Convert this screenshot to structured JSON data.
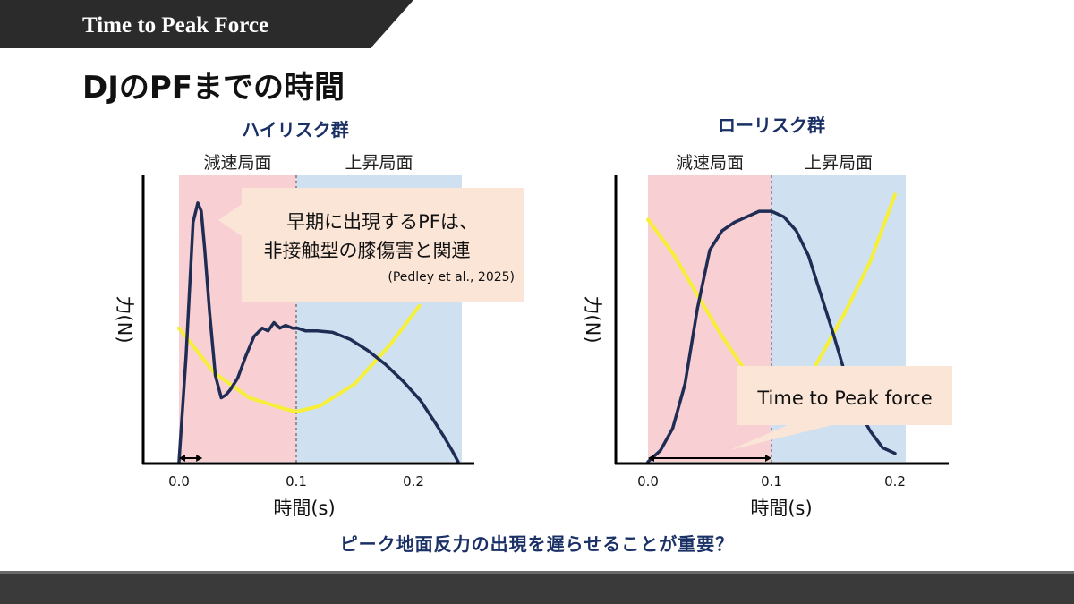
{
  "header": {
    "banner_title": "Time to Peak Force",
    "slide_title": "DJのPFまでの時間"
  },
  "colors": {
    "banner": "#2b2b2b",
    "deceleration_phase": "#f8cfd3",
    "ascending_phase": "#cfe0f0",
    "force_curve": "#1f2d55",
    "yellow_curve": "#f6ef3a",
    "group_title": "#1a3066",
    "callout": "#fbe5d6"
  },
  "conclusion": "ピーク地面反力の出現を遅らせることが重要？",
  "chart_data": [
    {
      "type": "line",
      "title": "ハイリスク群",
      "xlabel": "時間(s)",
      "ylabel": "力(N)",
      "x_ticks": [
        0.0,
        0.1,
        0.2
      ],
      "x_tick_labels": [
        "0.0",
        "0.1",
        "0.2"
      ],
      "xlim": [
        -0.03,
        0.255
      ],
      "ylim": [
        0,
        1
      ],
      "phases": [
        {
          "label": "減速局面",
          "start": 0.0,
          "end": 0.1
        },
        {
          "label": "上昇局面",
          "start": 0.1,
          "end": 0.24
        }
      ],
      "series": [
        {
          "name": "force",
          "x": [
            0.0,
            0.006,
            0.012,
            0.016,
            0.019,
            0.022,
            0.026,
            0.031,
            0.036,
            0.04,
            0.044,
            0.05,
            0.057,
            0.064,
            0.071,
            0.076,
            0.081,
            0.086,
            0.091,
            0.097,
            0.101,
            0.108,
            0.118,
            0.131,
            0.146,
            0.161,
            0.176,
            0.191,
            0.206,
            0.217,
            0.226,
            0.233,
            0.238
          ],
          "values": [
            0.0,
            0.38,
            0.86,
            0.93,
            0.9,
            0.76,
            0.54,
            0.31,
            0.23,
            0.24,
            0.26,
            0.3,
            0.38,
            0.45,
            0.48,
            0.47,
            0.5,
            0.48,
            0.49,
            0.48,
            0.48,
            0.47,
            0.47,
            0.465,
            0.44,
            0.4,
            0.35,
            0.29,
            0.22,
            0.15,
            0.09,
            0.04,
            0.0
          ]
        },
        {
          "name": "yellow",
          "x": [
            0.0,
            0.03,
            0.06,
            0.09,
            0.1,
            0.12,
            0.15,
            0.18,
            0.205
          ],
          "values": [
            0.48,
            0.32,
            0.23,
            0.19,
            0.18,
            0.2,
            0.28,
            0.42,
            0.56
          ]
        }
      ],
      "annotations": [
        {
          "kind": "callout",
          "lines": [
            "早期に出現するPFは、",
            "非接触型の膝傷害と関連"
          ],
          "citation": "(Pedley et al., 2025)"
        },
        {
          "kind": "time-to-peak-arrow",
          "from": 0.0,
          "to": 0.02
        }
      ]
    },
    {
      "type": "line",
      "title": "ローリスク群",
      "xlabel": "時間(s)",
      "ylabel": "力(N)",
      "x_ticks": [
        0.0,
        0.1,
        0.2
      ],
      "x_tick_labels": [
        "0.0",
        "0.1",
        "0.2"
      ],
      "xlim": [
        -0.03,
        0.25
      ],
      "ylim": [
        0,
        1
      ],
      "phases": [
        {
          "label": "減速局面",
          "start": 0.0,
          "end": 0.1
        },
        {
          "label": "上昇局面",
          "start": 0.1,
          "end": 0.2
        }
      ],
      "series": [
        {
          "name": "force",
          "x": [
            0.0,
            0.01,
            0.02,
            0.03,
            0.04,
            0.05,
            0.06,
            0.07,
            0.08,
            0.09,
            0.1,
            0.11,
            0.12,
            0.13,
            0.14,
            0.15,
            0.16,
            0.17,
            0.18,
            0.19,
            0.2
          ],
          "values": [
            0.0,
            0.04,
            0.12,
            0.28,
            0.55,
            0.76,
            0.83,
            0.86,
            0.88,
            0.9,
            0.9,
            0.88,
            0.83,
            0.74,
            0.6,
            0.46,
            0.31,
            0.19,
            0.11,
            0.05,
            0.03
          ]
        },
        {
          "name": "yellow",
          "x": [
            0.0,
            0.02,
            0.04,
            0.06,
            0.08,
            0.1,
            0.12,
            0.14,
            0.16,
            0.18,
            0.2
          ],
          "values": [
            0.87,
            0.75,
            0.6,
            0.45,
            0.32,
            0.18,
            0.22,
            0.38,
            0.54,
            0.72,
            0.96
          ]
        }
      ],
      "annotations": [
        {
          "kind": "callout",
          "lines": [
            "Time to Peak force"
          ]
        },
        {
          "kind": "time-to-peak-arrow",
          "from": 0.0,
          "to": 0.1
        }
      ]
    }
  ]
}
